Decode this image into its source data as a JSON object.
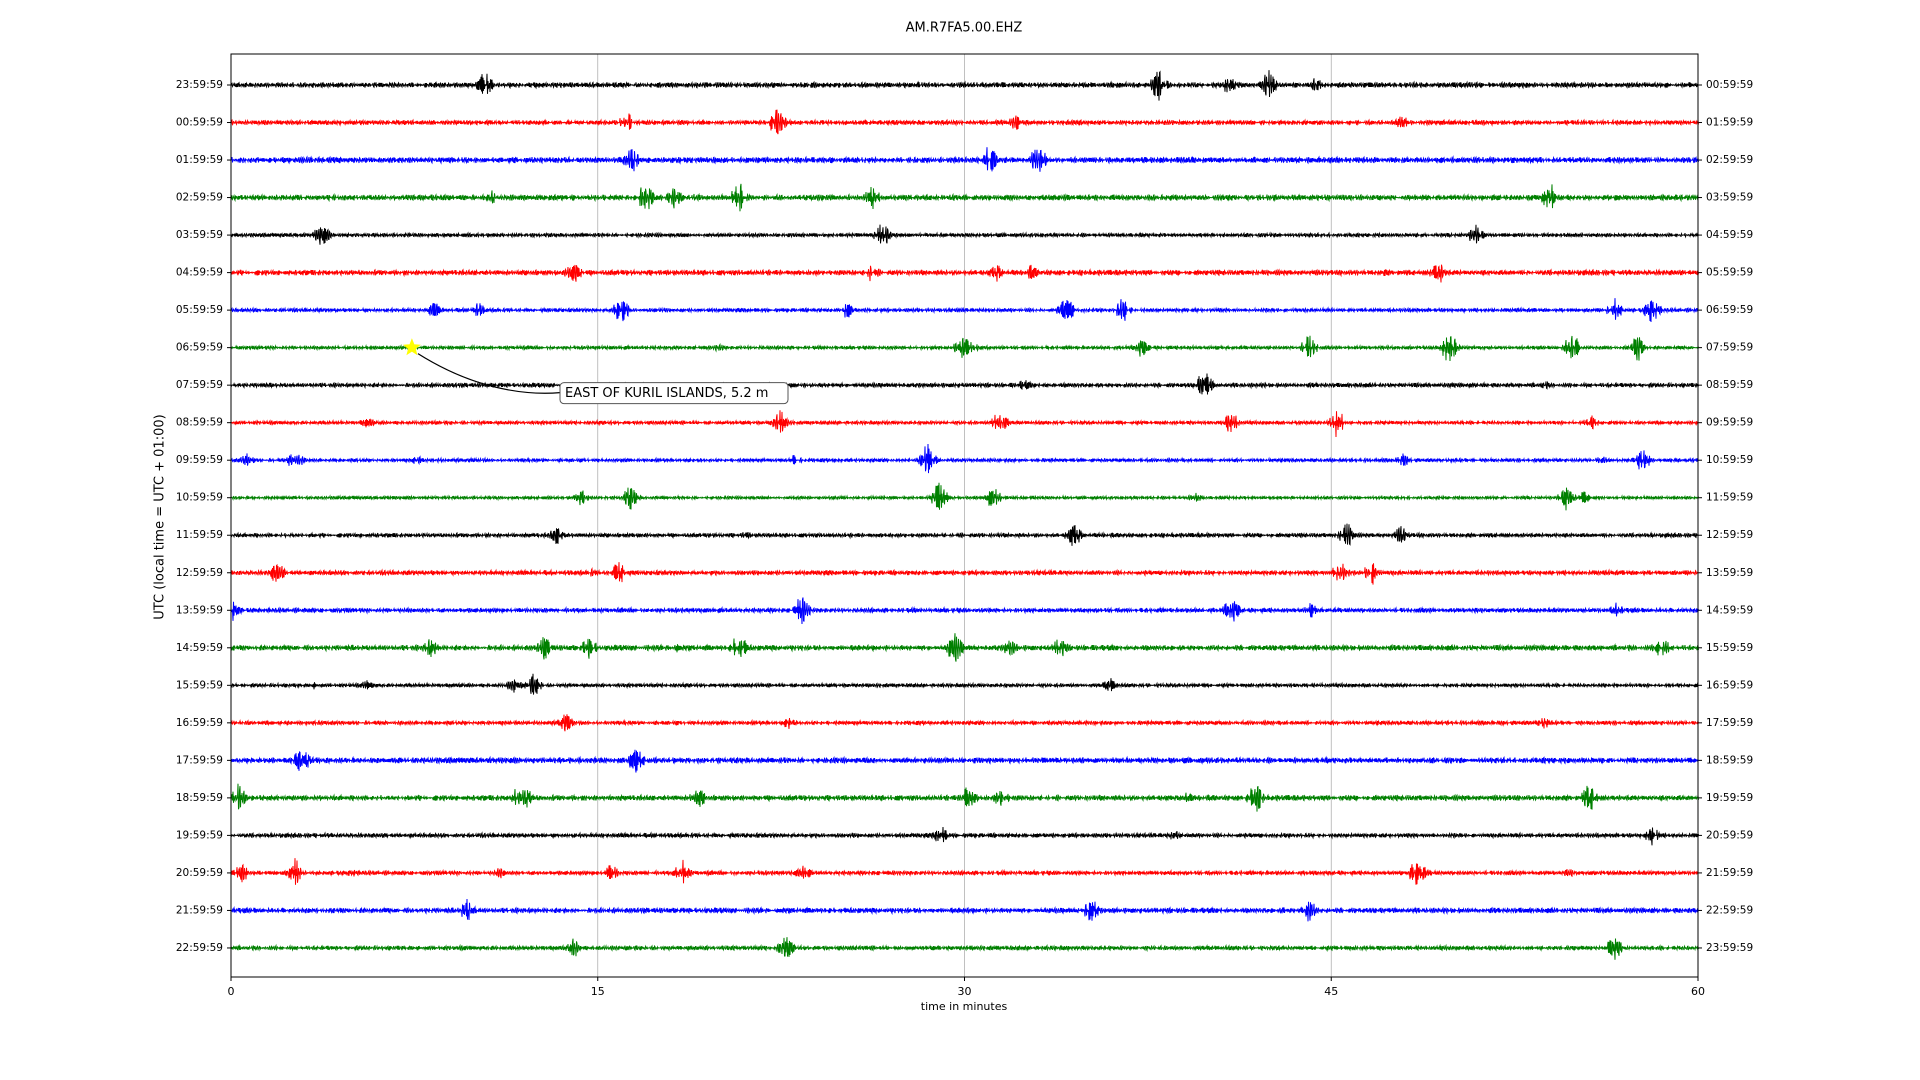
{
  "chart_data": {
    "type": "dayplot",
    "title": "AM.R7FA5.00.EHZ",
    "xlabel": "time in minutes",
    "ylabel": "UTC (local time = UTC + 01:00)",
    "xlim": [
      0,
      60
    ],
    "xticks": [
      0,
      15,
      30,
      45,
      60
    ],
    "grid": true,
    "colors": [
      "#000000",
      "#ff0000",
      "#0000ff",
      "#008000"
    ],
    "ylabels": [
      "23:59:59",
      "00:59:59",
      "01:59:59",
      "02:59:59",
      "03:59:59",
      "04:59:59",
      "05:59:59",
      "06:59:59",
      "07:59:59",
      "08:59:59",
      "09:59:59",
      "10:59:59",
      "11:59:59",
      "12:59:59",
      "13:59:59",
      "14:59:59",
      "15:59:59",
      "16:59:59",
      "17:59:59",
      "18:59:59",
      "19:59:59",
      "20:59:59",
      "21:59:59",
      "22:59:59"
    ],
    "y2labels": [
      "00:59:59",
      "01:59:59",
      "02:59:59",
      "03:59:59",
      "04:59:59",
      "05:59:59",
      "06:59:59",
      "07:59:59",
      "08:59:59",
      "09:59:59",
      "10:59:59",
      "11:59:59",
      "12:59:59",
      "13:59:59",
      "14:59:59",
      "15:59:59",
      "16:59:59",
      "17:59:59",
      "18:59:59",
      "19:59:59",
      "20:59:59",
      "21:59:59",
      "22:59:59",
      "23:59:59"
    ],
    "event": {
      "label": "EAST OF KURIL ISLANDS, 5.2 m",
      "x": 7.4,
      "color": "#ffff00"
    }
  }
}
